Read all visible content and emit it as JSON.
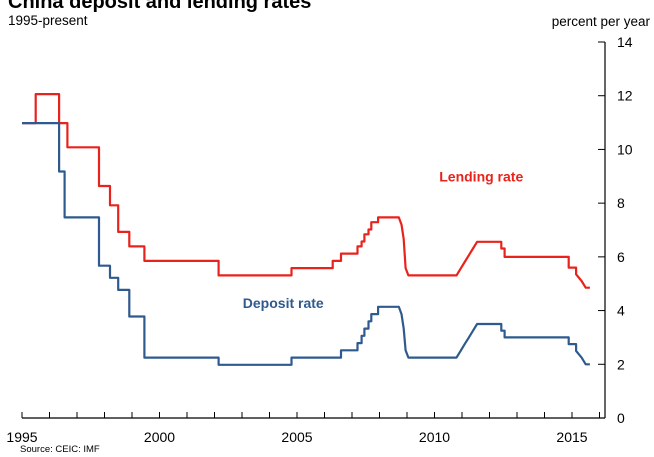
{
  "chart_data": {
    "type": "line",
    "title": "China deposit and lending rates",
    "subtitle": "1995-present",
    "ylabel": "percent per year",
    "source": "Source: CEIC: IMF",
    "xlim": [
      1995,
      2016.2
    ],
    "ylim": [
      0,
      14
    ],
    "x_ticks": [
      1995,
      2000,
      2005,
      2010,
      2015
    ],
    "y_ticks": [
      0,
      2,
      4,
      6,
      8,
      10,
      12,
      14
    ],
    "series": [
      {
        "name": "Lending rate",
        "label": "Lending rate",
        "color": "#e8231d",
        "label_at": [
          2011.7,
          8.8
        ],
        "points": [
          [
            1995.0,
            10.98
          ],
          [
            1995.5,
            10.98
          ],
          [
            1995.5,
            12.06
          ],
          [
            1996.35,
            12.06
          ],
          [
            1996.35,
            10.98
          ],
          [
            1996.65,
            10.98
          ],
          [
            1996.65,
            10.08
          ],
          [
            1997.8,
            10.08
          ],
          [
            1997.8,
            8.64
          ],
          [
            1998.2,
            8.64
          ],
          [
            1998.2,
            7.92
          ],
          [
            1998.5,
            7.92
          ],
          [
            1998.5,
            6.93
          ],
          [
            1998.9,
            6.93
          ],
          [
            1998.9,
            6.39
          ],
          [
            1999.45,
            6.39
          ],
          [
            1999.45,
            5.85
          ],
          [
            2002.15,
            5.85
          ],
          [
            2002.15,
            5.31
          ],
          [
            2004.8,
            5.31
          ],
          [
            2004.8,
            5.58
          ],
          [
            2006.3,
            5.58
          ],
          [
            2006.3,
            5.85
          ],
          [
            2006.6,
            5.85
          ],
          [
            2006.6,
            6.12
          ],
          [
            2007.2,
            6.12
          ],
          [
            2007.2,
            6.39
          ],
          [
            2007.35,
            6.39
          ],
          [
            2007.35,
            6.57
          ],
          [
            2007.45,
            6.57
          ],
          [
            2007.45,
            6.84
          ],
          [
            2007.6,
            6.84
          ],
          [
            2007.6,
            7.02
          ],
          [
            2007.7,
            7.02
          ],
          [
            2007.7,
            7.29
          ],
          [
            2007.95,
            7.29
          ],
          [
            2007.95,
            7.47
          ],
          [
            2008.7,
            7.47
          ],
          [
            2008.8,
            7.2
          ],
          [
            2008.88,
            6.66
          ],
          [
            2008.95,
            5.58
          ],
          [
            2009.05,
            5.31
          ],
          [
            2010.8,
            5.31
          ],
          [
            2010.95,
            5.56
          ],
          [
            2011.1,
            5.81
          ],
          [
            2011.25,
            6.06
          ],
          [
            2011.4,
            6.31
          ],
          [
            2011.55,
            6.56
          ],
          [
            2012.43,
            6.56
          ],
          [
            2012.43,
            6.31
          ],
          [
            2012.55,
            6.31
          ],
          [
            2012.55,
            6.0
          ],
          [
            2014.88,
            6.0
          ],
          [
            2014.88,
            5.6
          ],
          [
            2015.15,
            5.6
          ],
          [
            2015.15,
            5.35
          ],
          [
            2015.35,
            5.1
          ],
          [
            2015.5,
            4.85
          ],
          [
            2015.65,
            4.85
          ]
        ]
      },
      {
        "name": "Deposit rate",
        "label": "Deposit rate",
        "color": "#2f5a8e",
        "label_at": [
          2004.5,
          4.1
        ],
        "points": [
          [
            1995.0,
            10.98
          ],
          [
            1996.35,
            10.98
          ],
          [
            1996.35,
            9.18
          ],
          [
            1996.55,
            9.18
          ],
          [
            1996.55,
            7.47
          ],
          [
            1997.8,
            7.47
          ],
          [
            1997.8,
            5.67
          ],
          [
            1998.2,
            5.67
          ],
          [
            1998.2,
            5.22
          ],
          [
            1998.5,
            5.22
          ],
          [
            1998.5,
            4.77
          ],
          [
            1998.9,
            4.77
          ],
          [
            1998.9,
            3.78
          ],
          [
            1999.45,
            3.78
          ],
          [
            1999.45,
            2.25
          ],
          [
            2002.15,
            2.25
          ],
          [
            2002.15,
            1.98
          ],
          [
            2004.8,
            1.98
          ],
          [
            2004.8,
            2.25
          ],
          [
            2006.6,
            2.25
          ],
          [
            2006.6,
            2.52
          ],
          [
            2007.2,
            2.52
          ],
          [
            2007.2,
            2.79
          ],
          [
            2007.35,
            2.79
          ],
          [
            2007.35,
            3.06
          ],
          [
            2007.45,
            3.06
          ],
          [
            2007.45,
            3.33
          ],
          [
            2007.6,
            3.33
          ],
          [
            2007.6,
            3.6
          ],
          [
            2007.7,
            3.6
          ],
          [
            2007.7,
            3.87
          ],
          [
            2007.95,
            3.87
          ],
          [
            2007.95,
            4.14
          ],
          [
            2008.7,
            4.14
          ],
          [
            2008.8,
            3.87
          ],
          [
            2008.88,
            3.33
          ],
          [
            2008.95,
            2.52
          ],
          [
            2009.05,
            2.25
          ],
          [
            2010.8,
            2.25
          ],
          [
            2010.95,
            2.5
          ],
          [
            2011.1,
            2.75
          ],
          [
            2011.25,
            3.0
          ],
          [
            2011.4,
            3.25
          ],
          [
            2011.55,
            3.5
          ],
          [
            2012.43,
            3.5
          ],
          [
            2012.43,
            3.25
          ],
          [
            2012.55,
            3.25
          ],
          [
            2012.55,
            3.0
          ],
          [
            2014.88,
            3.0
          ],
          [
            2014.88,
            2.75
          ],
          [
            2015.15,
            2.75
          ],
          [
            2015.15,
            2.5
          ],
          [
            2015.35,
            2.25
          ],
          [
            2015.5,
            2.0
          ],
          [
            2015.65,
            2.0
          ]
        ]
      }
    ]
  }
}
